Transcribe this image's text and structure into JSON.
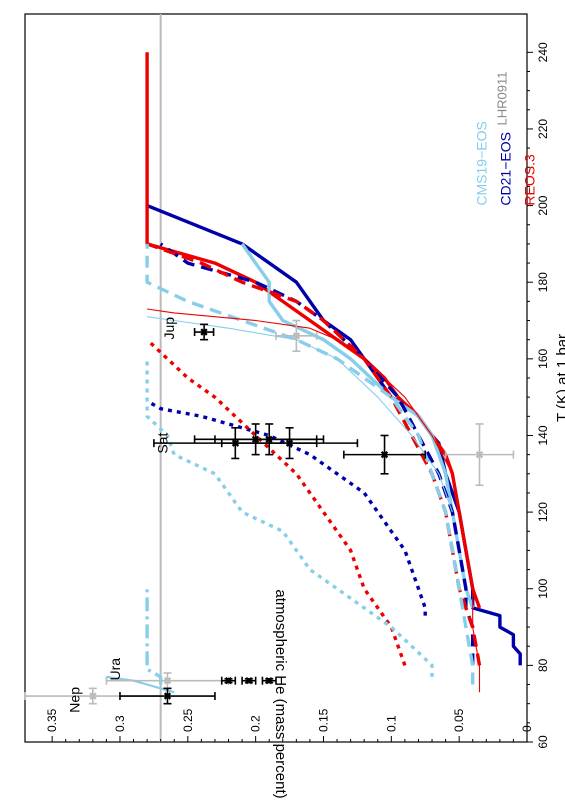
{
  "chart_data": {
    "type": "line",
    "xlabel": "T (K) at 1 bar",
    "ylabel": "atmospheric He (mass percent)",
    "xlim": [
      60,
      250
    ],
    "ylim": [
      0,
      0.37
    ],
    "xticks": [
      60,
      80,
      100,
      120,
      140,
      160,
      180,
      200,
      220,
      240
    ],
    "yticks": [
      0,
      0.05,
      0.1,
      0.15,
      0.2,
      0.25,
      0.3,
      0.35
    ],
    "xticklabels": [
      "60",
      "80",
      "100",
      "120",
      "140",
      "160",
      "180",
      "200",
      "220",
      "240"
    ],
    "yticklabels": [
      "0",
      "0.05",
      "0.1",
      "0.15",
      "0.2",
      "0.25",
      "0.3",
      "0.35"
    ],
    "grid": false,
    "orientation": "rotated 90 degrees (x axis on right side)",
    "reference_line": {
      "y": 0.27,
      "color": "#bbbbbb"
    },
    "corner_label": "LHR0911",
    "legend": [
      {
        "label": "CMS19−EOS",
        "color": "#87ceeb"
      },
      {
        "label": "CD21−EOS",
        "color": "#0000aa"
      },
      {
        "label": "REOS.3",
        "color": "#ee0000"
      }
    ],
    "planet_labels": [
      {
        "label": "Ura",
        "x": 79,
        "y": 0.3
      },
      {
        "label": "Nep",
        "x": 71,
        "y": 0.33
      },
      {
        "label": "Sat",
        "x": 138,
        "y": 0.265
      },
      {
        "label": "Jup",
        "x": 168,
        "y": 0.26
      }
    ],
    "series": [
      {
        "color": "#0000aa",
        "style": "solid",
        "width": "thick",
        "points": [
          [
            80,
            0.005
          ],
          [
            83,
            0.005
          ],
          [
            85,
            0.01
          ],
          [
            88,
            0.01
          ],
          [
            90,
            0.02
          ],
          [
            93,
            0.02
          ],
          [
            95,
            0.04
          ],
          [
            100,
            0.04
          ],
          [
            110,
            0.045
          ],
          [
            120,
            0.05
          ],
          [
            130,
            0.06
          ],
          [
            138,
            0.065
          ],
          [
            140,
            0.07
          ],
          [
            145,
            0.08
          ],
          [
            148,
            0.09
          ],
          [
            150,
            0.1
          ],
          [
            155,
            0.11
          ],
          [
            160,
            0.12
          ],
          [
            165,
            0.13
          ],
          [
            170,
            0.15
          ],
          [
            180,
            0.17
          ],
          [
            190,
            0.21
          ],
          [
            200,
            0.28
          ]
        ]
      },
      {
        "color": "#ee0000",
        "style": "solid",
        "width": "thick",
        "points": [
          [
            95,
            0.035
          ],
          [
            100,
            0.04
          ],
          [
            110,
            0.045
          ],
          [
            120,
            0.05
          ],
          [
            130,
            0.055
          ],
          [
            135,
            0.06
          ],
          [
            140,
            0.07
          ],
          [
            145,
            0.08
          ],
          [
            150,
            0.095
          ],
          [
            155,
            0.105
          ],
          [
            160,
            0.12
          ],
          [
            165,
            0.14
          ],
          [
            170,
            0.16
          ],
          [
            175,
            0.18
          ],
          [
            180,
            0.2
          ],
          [
            185,
            0.23
          ],
          [
            190,
            0.28
          ],
          [
            240,
            0.28
          ]
        ]
      },
      {
        "color": "#87ceeb",
        "style": "solid",
        "width": "thick",
        "points": [
          [
            95,
            0.04
          ],
          [
            100,
            0.045
          ],
          [
            110,
            0.05
          ],
          [
            120,
            0.055
          ],
          [
            130,
            0.06
          ],
          [
            135,
            0.065
          ],
          [
            140,
            0.07
          ],
          [
            145,
            0.08
          ],
          [
            150,
            0.1
          ],
          [
            155,
            0.115
          ],
          [
            160,
            0.13
          ],
          [
            165,
            0.15
          ],
          [
            170,
            0.18
          ],
          [
            175,
            0.19
          ],
          [
            180,
            0.19
          ],
          [
            185,
            0.2
          ],
          [
            190,
            0.21
          ]
        ]
      },
      {
        "color": "#0000aa",
        "style": "dashed",
        "width": "thick",
        "points": [
          [
            80,
            0.04
          ],
          [
            85,
            0.04
          ],
          [
            90,
            0.04
          ],
          [
            95,
            0.045
          ],
          [
            100,
            0.045
          ],
          [
            110,
            0.05
          ],
          [
            120,
            0.055
          ],
          [
            130,
            0.065
          ],
          [
            140,
            0.08
          ],
          [
            150,
            0.095
          ],
          [
            160,
            0.12
          ],
          [
            170,
            0.15
          ],
          [
            175,
            0.17
          ],
          [
            180,
            0.2
          ],
          [
            185,
            0.25
          ],
          [
            190,
            0.27
          ]
        ]
      },
      {
        "color": "#ee0000",
        "style": "dashed",
        "width": "thick",
        "points": [
          [
            80,
            0.035
          ],
          [
            90,
            0.04
          ],
          [
            95,
            0.045
          ],
          [
            100,
            0.05
          ],
          [
            110,
            0.055
          ],
          [
            120,
            0.06
          ],
          [
            130,
            0.07
          ],
          [
            140,
            0.085
          ],
          [
            150,
            0.1
          ],
          [
            160,
            0.12
          ],
          [
            170,
            0.15
          ],
          [
            175,
            0.17
          ],
          [
            180,
            0.21
          ],
          [
            185,
            0.24
          ],
          [
            190,
            0.28
          ]
        ]
      },
      {
        "color": "#87ceeb",
        "style": "dashed",
        "width": "thick",
        "points": [
          [
            75,
            0.04
          ],
          [
            80,
            0.04
          ],
          [
            90,
            0.045
          ],
          [
            100,
            0.05
          ],
          [
            110,
            0.055
          ],
          [
            120,
            0.06
          ],
          [
            130,
            0.07
          ],
          [
            140,
            0.08
          ],
          [
            150,
            0.1
          ],
          [
            160,
            0.14
          ],
          [
            165,
            0.17
          ],
          [
            170,
            0.21
          ],
          [
            175,
            0.25
          ],
          [
            180,
            0.28
          ],
          [
            190,
            0.28
          ]
        ]
      },
      {
        "color": "#0000aa",
        "style": "dotted",
        "width": "thick",
        "points": [
          [
            93,
            0.075
          ],
          [
            95,
            0.075
          ],
          [
            100,
            0.08
          ],
          [
            105,
            0.085
          ],
          [
            110,
            0.09
          ],
          [
            115,
            0.1
          ],
          [
            120,
            0.11
          ],
          [
            125,
            0.12
          ],
          [
            130,
            0.14
          ],
          [
            135,
            0.16
          ],
          [
            140,
            0.19
          ],
          [
            142,
            0.21
          ],
          [
            145,
            0.24
          ],
          [
            147,
            0.27
          ],
          [
            149,
            0.28
          ]
        ]
      },
      {
        "color": "#ee0000",
        "style": "dotted",
        "width": "thick",
        "points": [
          [
            80,
            0.09
          ],
          [
            85,
            0.095
          ],
          [
            90,
            0.1
          ],
          [
            95,
            0.11
          ],
          [
            100,
            0.12
          ],
          [
            105,
            0.125
          ],
          [
            110,
            0.13
          ],
          [
            115,
            0.14
          ],
          [
            120,
            0.15
          ],
          [
            130,
            0.17
          ],
          [
            140,
            0.2
          ],
          [
            150,
            0.23
          ],
          [
            155,
            0.25
          ],
          [
            160,
            0.265
          ],
          [
            165,
            0.28
          ]
        ]
      },
      {
        "color": "#87ceeb",
        "style": "dotted",
        "width": "thick",
        "points": [
          [
            77,
            0.07
          ],
          [
            80,
            0.07
          ],
          [
            85,
            0.085
          ],
          [
            90,
            0.1
          ],
          [
            95,
            0.12
          ],
          [
            100,
            0.14
          ],
          [
            105,
            0.16
          ],
          [
            110,
            0.17
          ],
          [
            115,
            0.18
          ],
          [
            120,
            0.21
          ],
          [
            125,
            0.22
          ],
          [
            130,
            0.23
          ],
          [
            135,
            0.26
          ],
          [
            140,
            0.265
          ],
          [
            145,
            0.28
          ],
          [
            160,
            0.28
          ]
        ]
      },
      {
        "color": "#87ceeb",
        "style": "dashdot",
        "width": "thick",
        "points": [
          [
            75,
            0.27
          ],
          [
            77,
            0.27
          ],
          [
            78,
            0.275
          ],
          [
            79,
            0.28
          ],
          [
            80,
            0.28
          ],
          [
            100,
            0.28
          ]
        ]
      },
      {
        "color": "#87ceeb",
        "style": "solid",
        "width": "medium",
        "points": [
          [
            73,
            0.26
          ],
          [
            74,
            0.27
          ],
          [
            75,
            0.28
          ],
          [
            76,
            0.29
          ],
          [
            77,
            0.31
          ]
        ]
      },
      {
        "color": "#ee0000",
        "style": "solid",
        "width": "thin",
        "points": [
          [
            73,
            0.035
          ],
          [
            80,
            0.035
          ],
          [
            90,
            0.04
          ],
          [
            100,
            0.04
          ],
          [
            110,
            0.045
          ],
          [
            120,
            0.05
          ],
          [
            130,
            0.055
          ],
          [
            140,
            0.07
          ],
          [
            150,
            0.09
          ],
          [
            160,
            0.12
          ],
          [
            165,
            0.14
          ],
          [
            168,
            0.16
          ],
          [
            170,
            0.2
          ],
          [
            172,
            0.26
          ],
          [
            173,
            0.28
          ]
        ]
      },
      {
        "color": "#87ceeb",
        "style": "solid",
        "width": "thin",
        "points": [
          [
            120,
            0.055
          ],
          [
            130,
            0.065
          ],
          [
            140,
            0.085
          ],
          [
            150,
            0.11
          ],
          [
            160,
            0.14
          ],
          [
            165,
            0.17
          ],
          [
            168,
            0.22
          ],
          [
            170,
            0.26
          ],
          [
            171,
            0.28
          ]
        ]
      }
    ],
    "error_bars": [
      {
        "color": "#bbbbbb",
        "x": 72,
        "y": 0.32,
        "yerr": 0.05,
        "xerr": 2
      },
      {
        "color": "#bbbbbb",
        "x": 76,
        "y": 0.265,
        "yerr": 0.045,
        "xerr": 2
      },
      {
        "color": "#000000",
        "x": 72,
        "y": 0.265,
        "yerr": 0.035,
        "xerr": 2
      },
      {
        "color": "#000000",
        "x": 76,
        "y": 0.22,
        "yerr": 0.005,
        "xerr": 0.5
      },
      {
        "color": "#000000",
        "x": 76,
        "y": 0.205,
        "yerr": 0.005,
        "xerr": 0.5
      },
      {
        "color": "#000000",
        "x": 76,
        "y": 0.19,
        "yerr": 0.005,
        "xerr": 0.5
      },
      {
        "color": "#000000",
        "x": 138,
        "y": 0.215,
        "yerr": 0.06,
        "xerr": 4
      },
      {
        "color": "#000000",
        "x": 139,
        "y": 0.2,
        "yerr": 0.045,
        "xerr": 4
      },
      {
        "color": "#000000",
        "x": 139,
        "y": 0.19,
        "yerr": 0.04,
        "xerr": 4
      },
      {
        "color": "#000000",
        "x": 138,
        "y": 0.175,
        "yerr": 0.05,
        "xerr": 4
      },
      {
        "color": "#000000",
        "x": 135,
        "y": 0.105,
        "yerr": 0.03,
        "xerr": 5
      },
      {
        "color": "#bbbbbb",
        "x": 135,
        "y": 0.035,
        "yerr": 0.025,
        "xerr": 8
      },
      {
        "color": "#bbbbbb",
        "x": 166,
        "y": 0.17,
        "yerr": 0.015,
        "xerr": 4
      },
      {
        "color": "#000000",
        "x": 167,
        "y": 0.238,
        "yerr": 0.007,
        "xerr": 2
      }
    ]
  }
}
